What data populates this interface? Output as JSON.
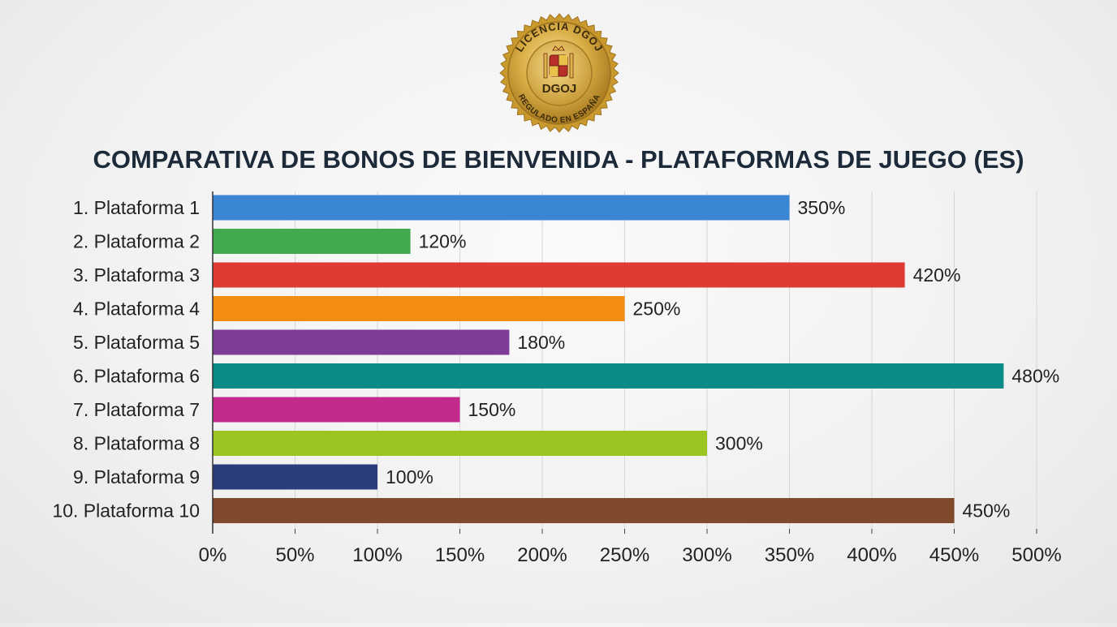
{
  "badge": {
    "top_text": "LICENCIA DGOJ",
    "center_text": "DGOJ",
    "bottom_text": "REGULADO EN ESPAÑA"
  },
  "chart_data": {
    "type": "bar",
    "orientation": "horizontal",
    "title": "COMPARATIVA DE BONOS DE BIENVENIDA - PLATAFORMAS DE JUEGO (ES)",
    "xlabel": "",
    "ylabel": "",
    "xlim": [
      0,
      500
    ],
    "grid": true,
    "x_ticks": [
      0,
      50,
      100,
      150,
      200,
      250,
      300,
      350,
      400,
      450,
      500
    ],
    "x_tick_labels": [
      "0%",
      "50%",
      "100%",
      "150%",
      "200%",
      "250%",
      "300%",
      "350%",
      "400%",
      "450%",
      "500%"
    ],
    "categories": [
      "1. Plataforma 1",
      "2. Plataforma 2",
      "3. Plataforma 3",
      "4. Plataforma 4",
      "5. Plataforma 5",
      "6. Plataforma 6",
      "7. Plataforma 7",
      "8. Plataforma 8",
      "9. Plataforma 9",
      "10. Plataforma 10"
    ],
    "values": [
      350,
      120,
      420,
      250,
      180,
      480,
      150,
      300,
      100,
      450
    ],
    "value_labels": [
      "350%",
      "120%",
      "420%",
      "250%",
      "180%",
      "480%",
      "150%",
      "300%",
      "100%",
      "450%"
    ],
    "colors": [
      "#3a86d4",
      "#41a94f",
      "#de3b34",
      "#f28c12",
      "#7e3c98",
      "#0b8b88",
      "#c42a8c",
      "#9bc521",
      "#293c7c",
      "#7f4b2c"
    ]
  }
}
